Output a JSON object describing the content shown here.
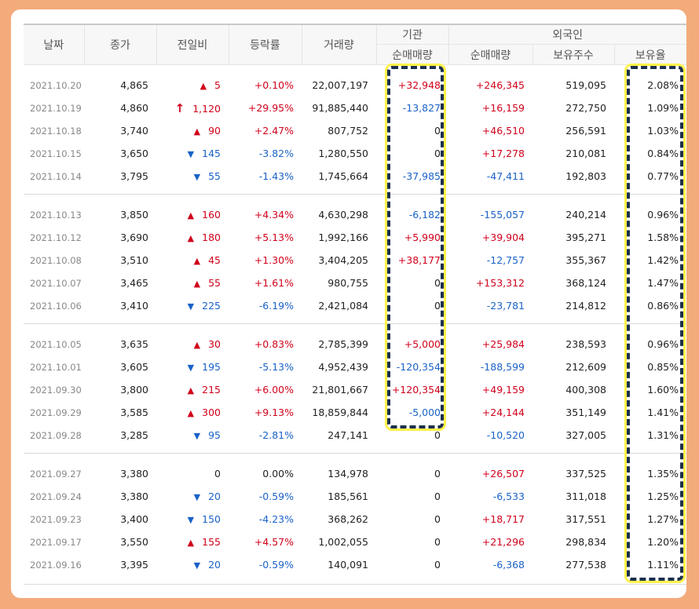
{
  "headers": {
    "date": "날짜",
    "close": "종가",
    "change": "전일비",
    "rate": "등락률",
    "volume": "거래량",
    "institution": "기관",
    "institution_net": "순매매량",
    "foreign": "외국인",
    "foreign_net": "순매매량",
    "foreign_holdings": "보유주수",
    "foreign_ratio": "보유율"
  },
  "groups": [
    [
      {
        "date": "2021.10.20",
        "close": "4,865",
        "change": "5",
        "dir": "up",
        "rate": "+0.10%",
        "volume": "22,007,197",
        "inst": "+32,948",
        "foreign": "+246,345",
        "holdings": "519,095",
        "ratio": "2.08%"
      },
      {
        "date": "2021.10.19",
        "close": "4,860",
        "change": "1,120",
        "dir": "limit",
        "rate": "+29.95%",
        "volume": "91,885,440",
        "inst": "-13,827",
        "foreign": "+16,159",
        "holdings": "272,750",
        "ratio": "1.09%"
      },
      {
        "date": "2021.10.18",
        "close": "3,740",
        "change": "90",
        "dir": "up",
        "rate": "+2.47%",
        "volume": "807,752",
        "inst": "0",
        "foreign": "+46,510",
        "holdings": "256,591",
        "ratio": "1.03%"
      },
      {
        "date": "2021.10.15",
        "close": "3,650",
        "change": "145",
        "dir": "down",
        "rate": "-3.82%",
        "volume": "1,280,550",
        "inst": "0",
        "foreign": "+17,278",
        "holdings": "210,081",
        "ratio": "0.84%"
      },
      {
        "date": "2021.10.14",
        "close": "3,795",
        "change": "55",
        "dir": "down",
        "rate": "-1.43%",
        "volume": "1,745,664",
        "inst": "-37,985",
        "foreign": "-47,411",
        "holdings": "192,803",
        "ratio": "0.77%"
      }
    ],
    [
      {
        "date": "2021.10.13",
        "close": "3,850",
        "change": "160",
        "dir": "up",
        "rate": "+4.34%",
        "volume": "4,630,298",
        "inst": "-6,182",
        "foreign": "-155,057",
        "holdings": "240,214",
        "ratio": "0.96%"
      },
      {
        "date": "2021.10.12",
        "close": "3,690",
        "change": "180",
        "dir": "up",
        "rate": "+5.13%",
        "volume": "1,992,166",
        "inst": "+5,990",
        "foreign": "+39,904",
        "holdings": "395,271",
        "ratio": "1.58%"
      },
      {
        "date": "2021.10.08",
        "close": "3,510",
        "change": "45",
        "dir": "up",
        "rate": "+1.30%",
        "volume": "3,404,205",
        "inst": "+38,177",
        "foreign": "-12,757",
        "holdings": "355,367",
        "ratio": "1.42%"
      },
      {
        "date": "2021.10.07",
        "close": "3,465",
        "change": "55",
        "dir": "up",
        "rate": "+1.61%",
        "volume": "980,755",
        "inst": "0",
        "foreign": "+153,312",
        "holdings": "368,124",
        "ratio": "1.47%"
      },
      {
        "date": "2021.10.06",
        "close": "3,410",
        "change": "225",
        "dir": "down",
        "rate": "-6.19%",
        "volume": "2,421,084",
        "inst": "0",
        "foreign": "-23,781",
        "holdings": "214,812",
        "ratio": "0.86%"
      }
    ],
    [
      {
        "date": "2021.10.05",
        "close": "3,635",
        "change": "30",
        "dir": "up",
        "rate": "+0.83%",
        "volume": "2,785,399",
        "inst": "+5,000",
        "foreign": "+25,984",
        "holdings": "238,593",
        "ratio": "0.96%"
      },
      {
        "date": "2021.10.01",
        "close": "3,605",
        "change": "195",
        "dir": "down",
        "rate": "-5.13%",
        "volume": "4,952,439",
        "inst": "-120,354",
        "foreign": "-188,599",
        "holdings": "212,609",
        "ratio": "0.85%"
      },
      {
        "date": "2021.09.30",
        "close": "3,800",
        "change": "215",
        "dir": "up",
        "rate": "+6.00%",
        "volume": "21,801,667",
        "inst": "+120,354",
        "foreign": "+49,159",
        "holdings": "400,308",
        "ratio": "1.60%"
      },
      {
        "date": "2021.09.29",
        "close": "3,585",
        "change": "300",
        "dir": "up",
        "rate": "+9.13%",
        "volume": "18,859,844",
        "inst": "-5,000",
        "foreign": "+24,144",
        "holdings": "351,149",
        "ratio": "1.41%"
      },
      {
        "date": "2021.09.28",
        "close": "3,285",
        "change": "95",
        "dir": "down",
        "rate": "-2.81%",
        "volume": "247,141",
        "inst": "0",
        "foreign": "-10,520",
        "holdings": "327,005",
        "ratio": "1.31%"
      }
    ],
    [
      {
        "date": "2021.09.27",
        "close": "3,380",
        "change": "0",
        "dir": "flat",
        "rate": "0.00%",
        "volume": "134,978",
        "inst": "0",
        "foreign": "+26,507",
        "holdings": "337,525",
        "ratio": "1.35%"
      },
      {
        "date": "2021.09.24",
        "close": "3,380",
        "change": "20",
        "dir": "down",
        "rate": "-0.59%",
        "volume": "185,561",
        "inst": "0",
        "foreign": "-6,533",
        "holdings": "311,018",
        "ratio": "1.25%"
      },
      {
        "date": "2021.09.23",
        "close": "3,400",
        "change": "150",
        "dir": "down",
        "rate": "-4.23%",
        "volume": "368,262",
        "inst": "0",
        "foreign": "+18,717",
        "holdings": "317,551",
        "ratio": "1.27%"
      },
      {
        "date": "2021.09.17",
        "close": "3,550",
        "change": "155",
        "dir": "up",
        "rate": "+4.57%",
        "volume": "1,002,055",
        "inst": "0",
        "foreign": "+21,296",
        "holdings": "298,834",
        "ratio": "1.20%"
      },
      {
        "date": "2021.09.16",
        "close": "3,395",
        "change": "20",
        "dir": "down",
        "rate": "-0.59%",
        "volume": "140,091",
        "inst": "0",
        "foreign": "-6,368",
        "holdings": "277,538",
        "ratio": "1.11%"
      }
    ]
  ],
  "icons": {
    "up": "up-triangle-icon",
    "down": "down-triangle-icon",
    "limit": "limit-up-arrow-icon"
  },
  "colors": {
    "up": "#d0021b",
    "down": "#1a62c7",
    "highlight_border": "#1b2f4d",
    "highlight_glow": "#fff24a",
    "background": "#f4ab7c"
  }
}
